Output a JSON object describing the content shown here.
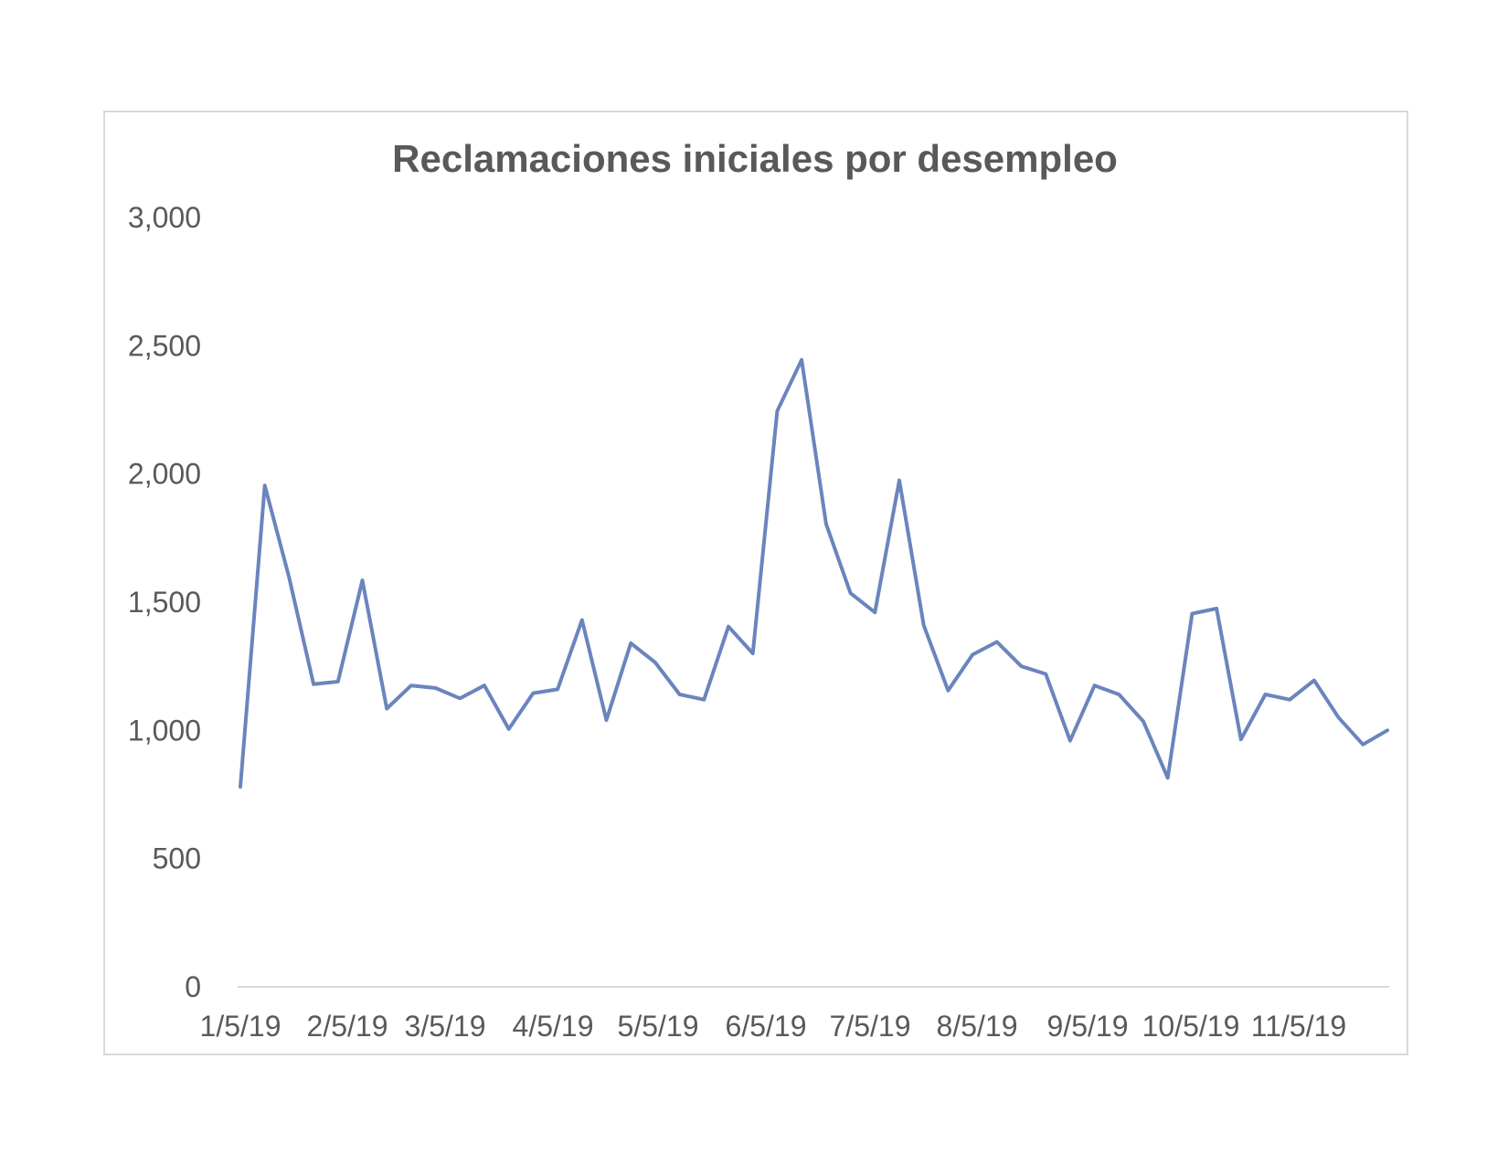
{
  "chart_data": {
    "type": "line",
    "title": "Reclamaciones iniciales por desempleo",
    "xlabel": "",
    "ylabel": "",
    "ylim": [
      0,
      3000
    ],
    "y_ticks": [
      "0",
      "500",
      "1,000",
      "1,500",
      "2,000",
      "2,500",
      "3,000"
    ],
    "y_tick_values": [
      0,
      500,
      1000,
      1500,
      2000,
      2500,
      3000
    ],
    "x_tick_labels": [
      "1/5/19",
      "2/5/19",
      "3/5/19",
      "4/5/19",
      "5/5/19",
      "6/5/19",
      "7/5/19",
      "8/5/19",
      "9/5/19",
      "10/5/19",
      "11/5/19"
    ],
    "grid": false,
    "legend": "none",
    "line_color": "#6a85bd",
    "series": [
      {
        "values": [
          780,
          1955,
          1595,
          1180,
          1190,
          1585,
          1085,
          1175,
          1165,
          1125,
          1175,
          1005,
          1145,
          1160,
          1430,
          1040,
          1340,
          1265,
          1140,
          1120,
          1405,
          1300,
          2245,
          2445,
          1805,
          1535,
          1460,
          1975,
          1410,
          1155,
          1295,
          1345,
          1250,
          1220,
          960,
          1175,
          1140,
          1035,
          815,
          1455,
          1475,
          965,
          1140,
          1120,
          1195,
          1050,
          945,
          1000
        ]
      }
    ]
  }
}
